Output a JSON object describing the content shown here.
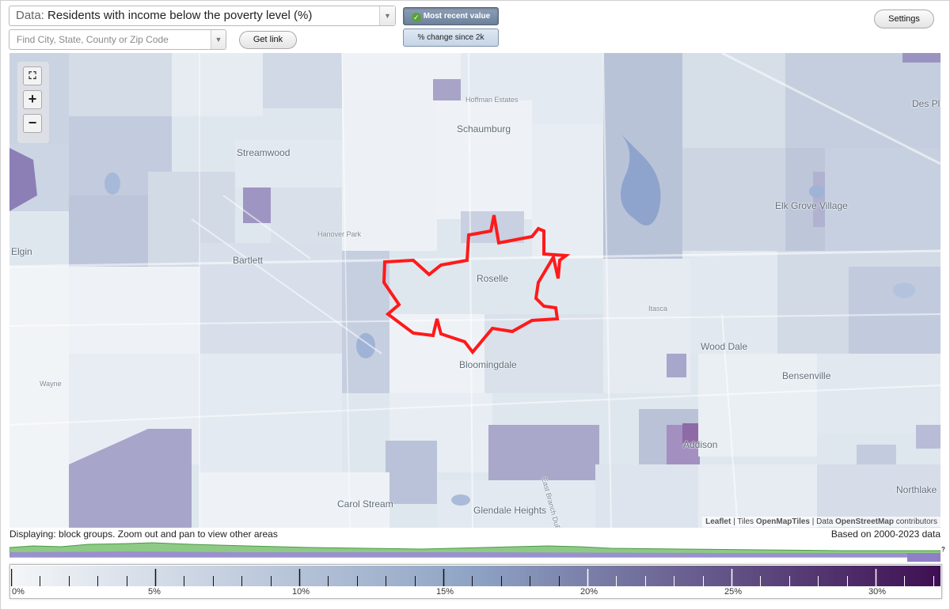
{
  "controls": {
    "data_prefix": "Data:",
    "data_value": "Residents with income below the poverty level (%)",
    "find_placeholder": "Find City, State, County or Zip Code",
    "get_link": "Get link",
    "mode_active": "Most recent value",
    "mode_inactive": "% change since 2k",
    "settings": "Settings"
  },
  "map": {
    "places": [
      {
        "name": "Hoffman Estates",
        "size": "small"
      },
      {
        "name": "Schaumburg",
        "size": "normal"
      },
      {
        "name": "Streamwood",
        "size": "normal"
      },
      {
        "name": "Hanover Park",
        "size": "small"
      },
      {
        "name": "Bartlett",
        "size": "normal"
      },
      {
        "name": "Roselle",
        "size": "normal"
      },
      {
        "name": "Itasca",
        "size": "small"
      },
      {
        "name": "Elk Grove Village",
        "size": "normal"
      },
      {
        "name": "Wood Dale",
        "size": "normal"
      },
      {
        "name": "Bloomingdale",
        "size": "normal"
      },
      {
        "name": "Bensenville",
        "size": "normal"
      },
      {
        "name": "Wayne",
        "size": "small"
      },
      {
        "name": "Addison",
        "size": "normal"
      },
      {
        "name": "Carol Stream",
        "size": "normal"
      },
      {
        "name": "Glendale Heights",
        "size": "normal"
      },
      {
        "name": "Northlake",
        "size": "normal"
      },
      {
        "name": "Des Pla",
        "size": "normal"
      },
      {
        "name": "Elgin",
        "size": "normal"
      },
      {
        "name": "East Branch DuPage River",
        "size": "small"
      }
    ],
    "highlight_color": "#ff1a1a",
    "attribution": {
      "leaflet": "Leaflet",
      "sep1": " | Tiles ",
      "tiles": "OpenMapTiles",
      "sep2": " | Data ",
      "data": "OpenStreetMap",
      "suffix": " contributors"
    }
  },
  "status_text": "Displaying: block groups. Zoom out and pan to view other areas",
  "based_on": "Based on 2000-2023 data",
  "histogram_help": "?",
  "legend": {
    "ticks": [
      "0%",
      "5%",
      "10%",
      "15%",
      "20%",
      "25%",
      "30%"
    ],
    "min_color": "#f4f6f8",
    "mid_color": "#8ea3c4",
    "max_color": "#3e0f52"
  }
}
